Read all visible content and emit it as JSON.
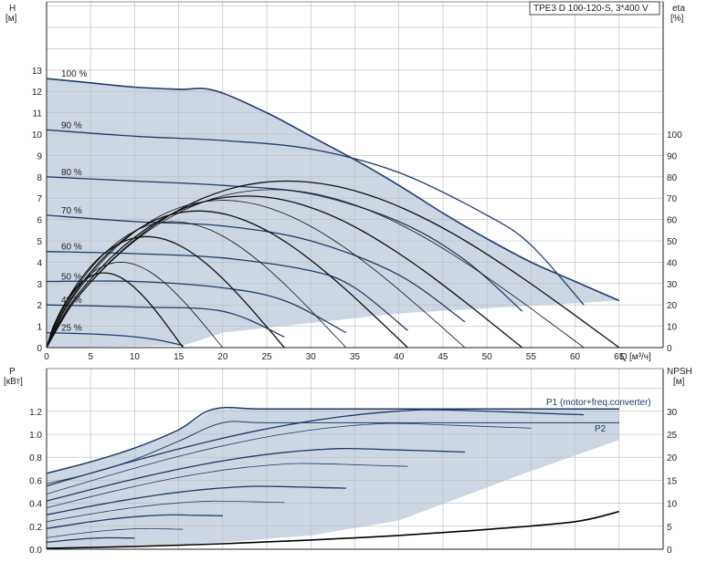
{
  "chart_data": [
    {
      "type": "line",
      "title": "TPE3 D 100-120-S, 3*400 V",
      "y_label": "H",
      "y_unit": "[м]",
      "y2_label": "eta",
      "y2_unit": "[%]",
      "x_label": "Q",
      "x_unit": "[м³/ч]",
      "xlim": [
        0,
        70
      ],
      "ylim": [
        0,
        16
      ],
      "y2lim": [
        0,
        160
      ],
      "x_ticks": [
        0,
        5,
        10,
        15,
        20,
        25,
        30,
        35,
        40,
        45,
        50,
        55,
        60,
        65
      ],
      "y_ticks": [
        0,
        1,
        2,
        3,
        4,
        5,
        6,
        7,
        8,
        9,
        10,
        11,
        12,
        13
      ],
      "y2_ticks": [
        0,
        10,
        20,
        30,
        40,
        50,
        60,
        70,
        80,
        90,
        100
      ],
      "grid": true,
      "series": [
        {
          "name": "100 %",
          "x": [
            0,
            5,
            10,
            15,
            19,
            25,
            30,
            35,
            40,
            45,
            50,
            55,
            60,
            65
          ],
          "y": [
            12.6,
            12.4,
            12.2,
            12.1,
            12.05,
            11.0,
            9.9,
            8.8,
            7.6,
            6.3,
            5.1,
            4.0,
            3.1,
            2.2
          ]
        },
        {
          "name": "90 %",
          "x": [
            0,
            10,
            20,
            30,
            40,
            50,
            55,
            61
          ],
          "y": [
            10.2,
            9.9,
            9.7,
            9.3,
            8.2,
            6.2,
            4.8,
            2.0
          ]
        },
        {
          "name": "80 %",
          "x": [
            0,
            10,
            20,
            30,
            40,
            47.5,
            54
          ],
          "y": [
            8.0,
            7.8,
            7.6,
            7.2,
            5.9,
            4.1,
            1.7
          ]
        },
        {
          "name": "70 %",
          "x": [
            0,
            10,
            20,
            30,
            40,
            47.5
          ],
          "y": [
            6.2,
            5.9,
            5.7,
            5.0,
            3.4,
            1.2
          ]
        },
        {
          "name": "60 %",
          "x": [
            0,
            10,
            20,
            30,
            35,
            41
          ],
          "y": [
            4.5,
            4.4,
            4.2,
            3.6,
            2.8,
            0.8
          ]
        },
        {
          "name": "50 %",
          "x": [
            0,
            10,
            20,
            27,
            34
          ],
          "y": [
            3.1,
            3.1,
            2.8,
            2.2,
            0.7
          ]
        },
        {
          "name": "40 %",
          "x": [
            0,
            10,
            20,
            27
          ],
          "y": [
            2.0,
            1.9,
            1.7,
            0.5
          ]
        },
        {
          "name": "25 %",
          "x": [
            0,
            7,
            12,
            15.5
          ],
          "y": [
            0.7,
            0.6,
            0.4,
            0.1
          ]
        }
      ]
    },
    {
      "type": "line",
      "y_label": "P",
      "y_unit": "[кВт]",
      "y2_label": "NPSH",
      "y2_unit": "[м]",
      "xlim": [
        0,
        70
      ],
      "ylim": [
        0,
        1.4
      ],
      "y2lim": [
        0,
        35
      ],
      "y_ticks": [
        0.0,
        0.2,
        0.4,
        0.6,
        0.8,
        1.0,
        1.2
      ],
      "y_tick_labels": [
        "0.0",
        "0.2",
        "0.4",
        "0.6",
        "0.8",
        "1.0",
        "1.2"
      ],
      "y2_ticks": [
        0,
        5,
        10,
        15,
        20,
        25,
        30
      ],
      "grid": true,
      "annotations": [
        "P1 (motor+freq.converter)",
        "P2"
      ],
      "series": [
        {
          "name": "P1 (motor+freq.converter)",
          "x": [
            0,
            5,
            10,
            15,
            19,
            25,
            40,
            60,
            65
          ],
          "y": [
            0.66,
            0.76,
            0.88,
            1.04,
            1.22,
            1.22,
            1.22,
            1.22,
            1.22
          ]
        },
        {
          "name": "P2",
          "x": [
            0,
            5,
            10,
            15,
            20,
            25,
            40,
            60,
            65
          ],
          "y": [
            0.57,
            0.66,
            0.78,
            0.94,
            1.1,
            1.1,
            1.1,
            1.1,
            1.1
          ]
        },
        {
          "name": "NPSH",
          "x": [
            0,
            10,
            20,
            30,
            40,
            50,
            60,
            65
          ],
          "y2": [
            0.2,
            0.6,
            1.2,
            2.0,
            3.0,
            4.3,
            6.0,
            8.2
          ]
        }
      ]
    }
  ]
}
